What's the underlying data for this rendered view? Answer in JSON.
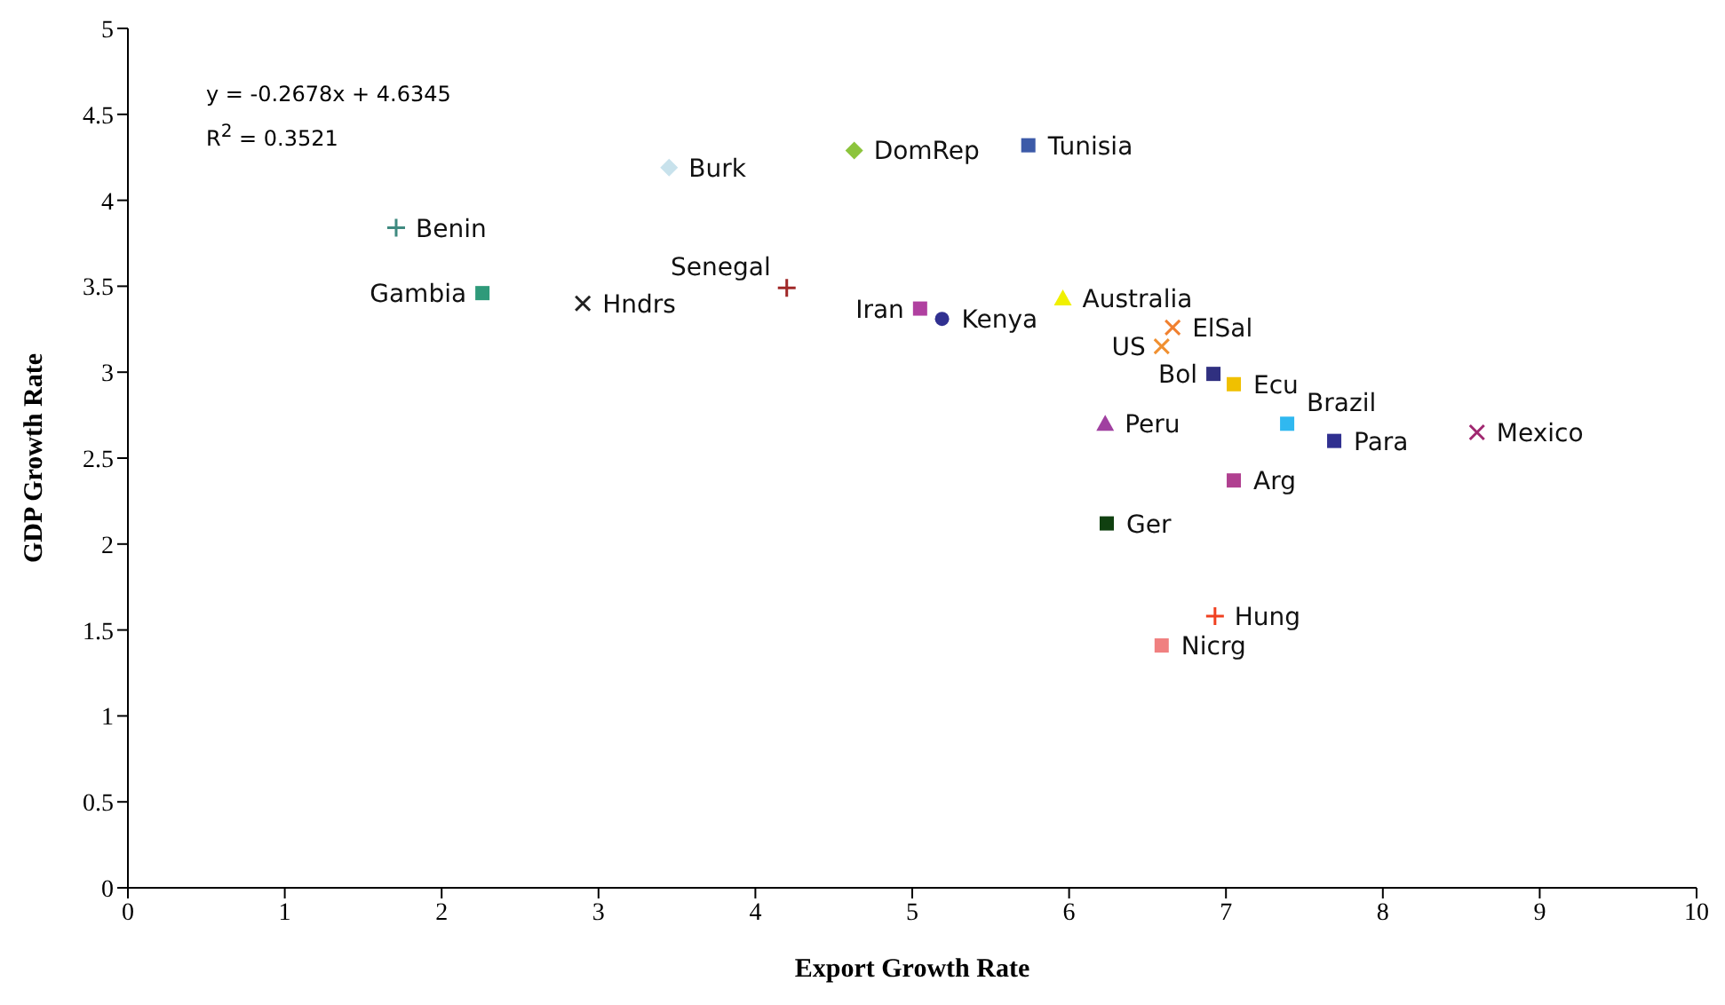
{
  "chart_data": {
    "type": "scatter",
    "xlabel": "Export Growth Rate",
    "ylabel": "GDP Growth Rate",
    "xlim": [
      0,
      10
    ],
    "ylim": [
      0,
      5
    ],
    "xticks": [
      0,
      1,
      2,
      3,
      4,
      5,
      6,
      7,
      8,
      9,
      10
    ],
    "yticks": [
      0,
      0.5,
      1,
      1.5,
      2,
      2.5,
      3,
      3.5,
      4,
      4.5,
      5
    ],
    "grid": false,
    "legend": false,
    "annotations": [
      "y = -0.2678x + 4.6345",
      "R$^{2}$ = 0.3521"
    ],
    "series": [
      {
        "name": "Benin",
        "color": "#3f8a80",
        "marker": "cross",
        "x": [
          1.71
        ],
        "values": [
          3.84
        ]
      },
      {
        "name": "Gambia",
        "color": "#2f9a7a",
        "marker": "square",
        "x": [
          2.26
        ],
        "values": [
          3.46
        ]
      },
      {
        "name": "Hndrs",
        "color": "#222222",
        "marker": "x",
        "x": [
          2.9
        ],
        "values": [
          3.4
        ]
      },
      {
        "name": "Burk",
        "color": "#c8e2ec",
        "marker": "diamond",
        "x": [
          3.45
        ],
        "values": [
          4.19
        ]
      },
      {
        "name": "Senegal",
        "color": "#a02828",
        "marker": "cross",
        "x": [
          4.2
        ],
        "values": [
          3.49
        ]
      },
      {
        "name": "DomRep",
        "color": "#8cc43c",
        "marker": "diamond",
        "x": [
          4.63
        ],
        "values": [
          4.29
        ]
      },
      {
        "name": "Iran",
        "color": "#b040a0",
        "marker": "square",
        "x": [
          5.05
        ],
        "values": [
          3.37
        ]
      },
      {
        "name": "Kenya",
        "color": "#303090",
        "marker": "circle",
        "x": [
          5.19
        ],
        "values": [
          3.31
        ]
      },
      {
        "name": "Tunisia",
        "color": "#3c5aa8",
        "marker": "square",
        "x": [
          5.74
        ],
        "values": [
          4.32
        ]
      },
      {
        "name": "Australia",
        "color": "#f0f000",
        "marker": "triangle",
        "x": [
          5.96
        ],
        "values": [
          3.43
        ]
      },
      {
        "name": "ElSal",
        "color": "#f08030",
        "marker": "x",
        "x": [
          6.66
        ],
        "values": [
          3.26
        ]
      },
      {
        "name": "US",
        "color": "#f09030",
        "marker": "x",
        "x": [
          6.59
        ],
        "values": [
          3.15
        ]
      },
      {
        "name": "Bol",
        "color": "#303080",
        "marker": "square",
        "x": [
          6.92
        ],
        "values": [
          2.99
        ]
      },
      {
        "name": "Ecu",
        "color": "#f0c000",
        "marker": "square",
        "x": [
          7.05
        ],
        "values": [
          2.93
        ]
      },
      {
        "name": "Peru",
        "color": "#a040a0",
        "marker": "triangle",
        "x": [
          6.23
        ],
        "values": [
          2.7
        ]
      },
      {
        "name": "Brazil",
        "color": "#30b8f0",
        "marker": "square",
        "x": [
          7.39
        ],
        "values": [
          2.7
        ]
      },
      {
        "name": "Para",
        "color": "#303090",
        "marker": "square",
        "x": [
          7.69
        ],
        "values": [
          2.6
        ]
      },
      {
        "name": "Mexico",
        "color": "#a02870",
        "marker": "x",
        "x": [
          8.6
        ],
        "values": [
          2.65
        ]
      },
      {
        "name": "Arg",
        "color": "#b04090",
        "marker": "square",
        "x": [
          7.05
        ],
        "values": [
          2.37
        ]
      },
      {
        "name": "Ger",
        "color": "#104010",
        "marker": "square",
        "x": [
          6.24
        ],
        "values": [
          2.12
        ]
      },
      {
        "name": "Hung",
        "color": "#f04020",
        "marker": "cross",
        "x": [
          6.93
        ],
        "values": [
          1.58
        ]
      },
      {
        "name": "Nicrg",
        "color": "#f08080",
        "marker": "square",
        "x": [
          6.59
        ],
        "values": [
          1.41
        ]
      }
    ]
  }
}
